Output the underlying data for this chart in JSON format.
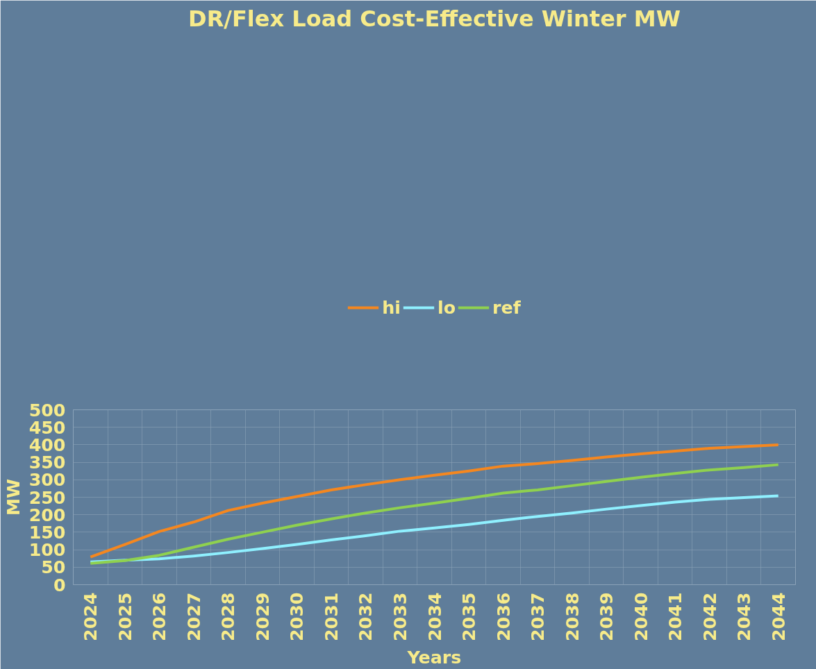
{
  "chart_data": {
    "type": "line",
    "title": "DR/Flex Load Cost-Effective Winter MW",
    "xlabel": "Years",
    "ylabel": "MW",
    "categories": [
      "2024",
      "2025",
      "2026",
      "2027",
      "2028",
      "2029",
      "2030",
      "2031",
      "2032",
      "2033",
      "2034",
      "2035",
      "2036",
      "2037",
      "2038",
      "2039",
      "2040",
      "2041",
      "2042",
      "2043",
      "2044"
    ],
    "series": [
      {
        "name": "hi",
        "color": "#f5871f",
        "values": [
          79,
          115,
          152,
          179,
          212,
          233,
          252,
          271,
          286,
          300,
          313,
          325,
          339,
          346,
          355,
          365,
          374,
          382,
          390,
          395,
          400
        ]
      },
      {
        "name": "lo",
        "color": "#8ff0ff",
        "values": [
          65,
          70,
          74,
          82,
          92,
          103,
          115,
          128,
          140,
          153,
          162,
          172,
          184,
          195,
          205,
          216,
          226,
          236,
          244,
          249,
          254
        ]
      },
      {
        "name": "ref",
        "color": "#8fd14f",
        "values": [
          61,
          69,
          84,
          107,
          130,
          150,
          170,
          188,
          205,
          220,
          233,
          247,
          262,
          271,
          283,
          295,
          307,
          318,
          328,
          335,
          343
        ]
      }
    ],
    "ylim": [
      0,
      500
    ],
    "yticks": [
      0,
      50,
      100,
      150,
      200,
      250,
      300,
      350,
      400,
      450,
      500
    ],
    "grid": true,
    "legend": "top",
    "marker": "none",
    "line_style": "solid"
  }
}
